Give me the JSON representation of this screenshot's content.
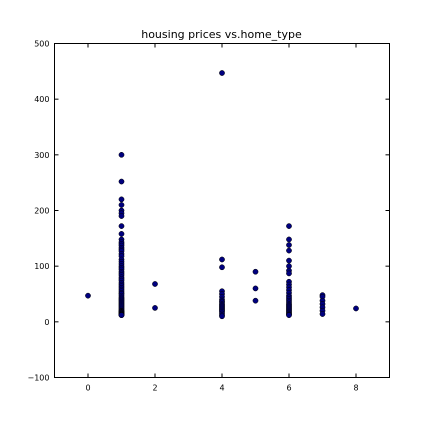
{
  "chart_data": {
    "type": "scatter",
    "title": "housing prices vs.home_type",
    "xlabel": "",
    "ylabel": "",
    "xlim": [
      -1,
      9
    ],
    "ylim": [
      -100,
      500
    ],
    "xticks": [
      0,
      2,
      4,
      6,
      8
    ],
    "yticks": [
      -100,
      0,
      100,
      200,
      300,
      400,
      500
    ],
    "xtick_labels": [
      "0",
      "2",
      "4",
      "6",
      "8"
    ],
    "ytick_labels": [
      "−100",
      "0",
      "100",
      "200",
      "300",
      "400",
      "500"
    ],
    "grid": false,
    "marker_color": "#00007f",
    "marker_edge": "#000000",
    "series": [
      {
        "x": [
          0,
          1,
          1,
          1,
          1,
          1,
          1,
          1,
          1,
          1,
          1,
          1,
          1,
          1,
          1,
          1,
          1,
          1,
          1,
          1,
          1,
          1,
          1,
          1,
          1,
          1,
          1,
          1,
          1,
          1,
          1,
          1,
          1,
          1,
          1,
          1,
          1,
          1,
          1,
          1,
          1,
          1,
          1,
          1,
          1,
          1,
          1,
          1,
          1,
          1,
          1,
          1,
          1,
          1,
          1,
          1,
          1,
          1,
          1,
          1,
          1,
          1,
          1,
          2,
          2,
          4,
          4,
          4,
          4,
          4,
          4,
          4,
          4,
          4,
          4,
          4,
          4,
          4,
          4,
          4,
          4,
          4,
          4,
          4,
          4,
          5,
          5,
          5,
          6,
          6,
          6,
          6,
          6,
          6,
          6,
          6,
          6,
          6,
          6,
          6,
          6,
          6,
          6,
          6,
          6,
          6,
          6,
          6,
          6,
          6,
          6,
          6,
          6,
          6,
          6,
          6,
          6,
          6,
          7,
          7,
          7,
          7,
          7,
          7,
          7,
          8
        ],
        "y": [
          47,
          300,
          252,
          220,
          210,
          200,
          195,
          190,
          172,
          158,
          148,
          143,
          140,
          137,
          133,
          130,
          127,
          122,
          118,
          112,
          108,
          104,
          100,
          97,
          94,
          90,
          87,
          84,
          80,
          77,
          74,
          70,
          67,
          64,
          61,
          58,
          55,
          52,
          50,
          47,
          44,
          42,
          40,
          38,
          36,
          34,
          32,
          30,
          28,
          26,
          24,
          22,
          20,
          19,
          18,
          17,
          16,
          15,
          14,
          13,
          13,
          12,
          12,
          68,
          25,
          447,
          112,
          98,
          55,
          50,
          45,
          40,
          37,
          35,
          32,
          30,
          28,
          26,
          24,
          22,
          20,
          18,
          15,
          12,
          10,
          90,
          60,
          38,
          172,
          148,
          138,
          128,
          110,
          100,
          92,
          87,
          72,
          67,
          62,
          57,
          52,
          47,
          44,
          41,
          38,
          35,
          32,
          30,
          28,
          26,
          24,
          22,
          20,
          18,
          16,
          14,
          13,
          12,
          48,
          45,
          38,
          32,
          26,
          20,
          14,
          24
        ]
      }
    ]
  }
}
